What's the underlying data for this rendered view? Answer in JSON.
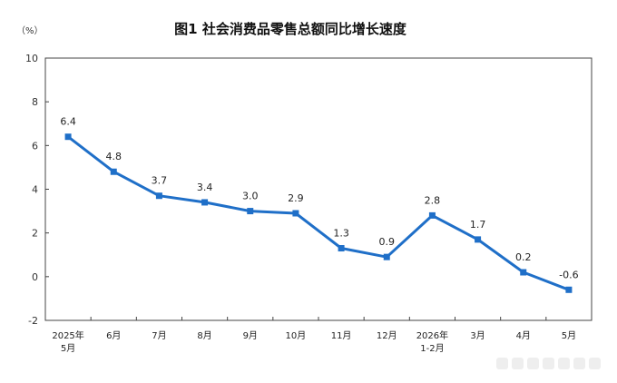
{
  "chart_data": {
    "type": "line",
    "title": "图1  社会消费品零售总额同比增长速度",
    "unit": "（%）",
    "categories": [
      [
        "2025年",
        "5月"
      ],
      [
        "6月"
      ],
      [
        "7月"
      ],
      [
        "8月"
      ],
      [
        "9月"
      ],
      [
        "10月"
      ],
      [
        "11月"
      ],
      [
        "12月"
      ],
      [
        "2026年",
        "1-2月"
      ],
      [
        "3月"
      ],
      [
        "4月"
      ],
      [
        "5月"
      ]
    ],
    "values": [
      6.4,
      4.8,
      3.7,
      3.4,
      3.0,
      2.9,
      1.3,
      0.9,
      2.8,
      1.7,
      0.2,
      -0.6
    ],
    "value_labels": [
      "6.4",
      "4.8",
      "3.7",
      "3.4",
      "3.0",
      "2.9",
      "1.3",
      "0.9",
      "2.8",
      "1.7",
      "0.2",
      "-0.6"
    ],
    "yticks": [
      "10",
      "8",
      "6",
      "4",
      "2",
      "0",
      "-2"
    ],
    "ylim": [
      -2,
      10
    ],
    "line_color": "#1f6fc8",
    "grid": false
  }
}
